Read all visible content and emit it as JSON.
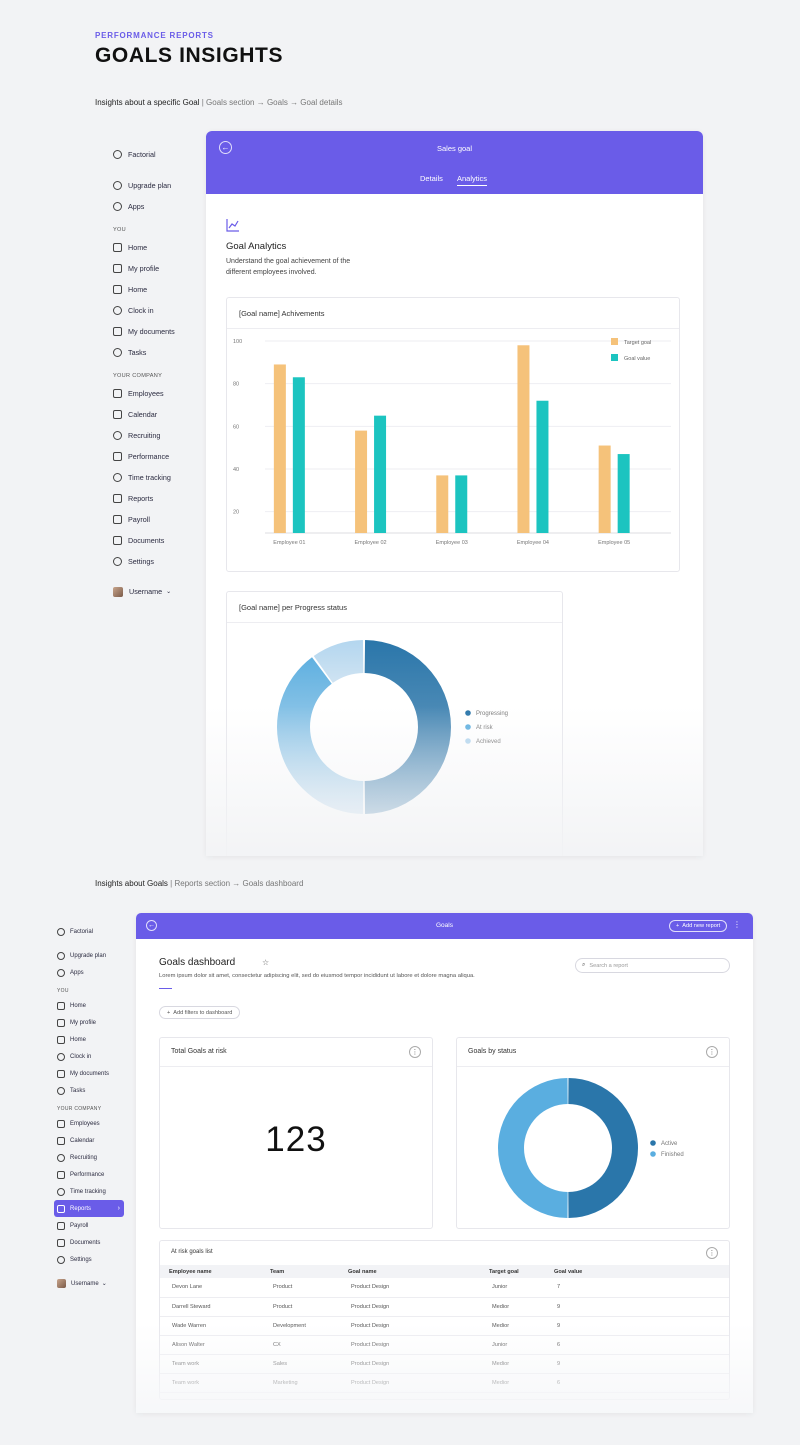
{
  "header": {
    "eyebrow": "PERFORMANCE REPORTS",
    "title": "GOALS INSIGHTS"
  },
  "section1": {
    "caption_main": "Insights about a specific Goal",
    "caption_path": " | Goals section → Goals → Goal details",
    "sidebar": {
      "brand": "Factorial",
      "top_items": [
        "Upgrade plan",
        "Apps"
      ],
      "you_header": "YOU",
      "you_items": [
        "Home",
        "My profile",
        "Home",
        "Clock in",
        "My documents",
        "Tasks"
      ],
      "company_header": "YOUR COMPANY",
      "company_items": [
        "Employees",
        "Calendar",
        "Recruiting",
        "Performance",
        "Time tracking",
        "Reports",
        "Payroll",
        "Documents",
        "Settings"
      ],
      "username": "Username"
    },
    "window": {
      "title": "Sales goal",
      "tabs": [
        "Details",
        "Analytics"
      ],
      "active_tab": "Analytics",
      "analytics_title": "Goal Analytics",
      "analytics_desc_1": "Understand the goal achievement of the",
      "analytics_desc_2": "different employees involved.",
      "bar_card_title": "[Goal name] Achivements",
      "donut_card_title": "[Goal name] per Progress status"
    }
  },
  "section2": {
    "caption_main": "Insights about Goals",
    "caption_path": " | Reports section → Goals dashboard",
    "sidebar": {
      "brand": "Factorial",
      "top_items": [
        "Upgrade plan",
        "Apps"
      ],
      "you_header": "YOU",
      "you_items": [
        "Home",
        "My profile",
        "Home",
        "Clock in",
        "My documents",
        "Tasks"
      ],
      "company_header": "YOUR COMPANY",
      "company_items": [
        "Employees",
        "Calendar",
        "Recruiting",
        "Performance",
        "Time tracking",
        "Reports",
        "Payroll",
        "Documents",
        "Settings"
      ],
      "active_item": "Reports",
      "username": "Username"
    },
    "window": {
      "title": "Goals",
      "add_report": "Add new report",
      "dashboard_title": "Goals  dashboard",
      "dashboard_desc": "Lorem ipsum dolor sit amet, consectetur adipiscing elit, sed do eiusmod tempor incididunt ut labore et dolore magna aliqua.",
      "search_placeholder": "Search a report",
      "add_filters": "Add filters to dashboard",
      "risk_card_title": "Total Goals at risk",
      "risk_value": "123",
      "status_card_title": "Goals by status",
      "list_title": "At risk goals list",
      "table": {
        "headers": [
          "Employee name",
          "Team",
          "Goal name",
          "Target goal",
          "Goal value"
        ],
        "rows": [
          [
            "Devon Lane",
            "Product",
            "Product Design",
            "Junior",
            "7"
          ],
          [
            "Darrell Steward",
            "Product",
            "Product Design",
            "Medior",
            "9"
          ],
          [
            "Wade Warren",
            "Development",
            "Product Design",
            "Medior",
            "9"
          ],
          [
            "Alison Walter",
            "CX",
            "Product Design",
            "Junior",
            "6"
          ],
          [
            "Team work",
            "Sales",
            "Product Design",
            "Medior",
            "9"
          ],
          [
            "Team work",
            "Marketing",
            "Product Design",
            "Medior",
            "6"
          ]
        ]
      }
    }
  },
  "chart_data": [
    {
      "type": "bar",
      "categories": [
        "Employee 01",
        "Employee 02",
        "Employee 03",
        "Employee 04",
        "Employee 05"
      ],
      "series": [
        {
          "name": "Target goal",
          "color": "#f5c27a",
          "values": [
            89,
            58,
            37,
            98,
            51
          ]
        },
        {
          "name": "Goal value",
          "color": "#1cc4c0",
          "values": [
            83,
            65,
            37,
            72,
            47
          ]
        }
      ],
      "yticks": [
        20,
        40,
        60,
        80,
        100
      ],
      "ylim": [
        10,
        100
      ],
      "grid": true,
      "legend": "top-right",
      "title": "[Goal name] Achivements"
    },
    {
      "type": "pie",
      "donut": true,
      "title": "[Goal name] per Progress status",
      "labels": [
        "Progressing",
        "At risk",
        "Achieved"
      ],
      "values": [
        50,
        40,
        10
      ],
      "colors": [
        "#2a76aa",
        "#5fb0e0",
        "#b3d6ef"
      ],
      "legend": "right"
    },
    {
      "type": "pie",
      "donut": true,
      "title": "Goals by status",
      "labels": [
        "Active",
        "Finished"
      ],
      "values": [
        50,
        50
      ],
      "colors": [
        "#2a76aa",
        "#5aaee0"
      ],
      "legend": "right"
    }
  ]
}
